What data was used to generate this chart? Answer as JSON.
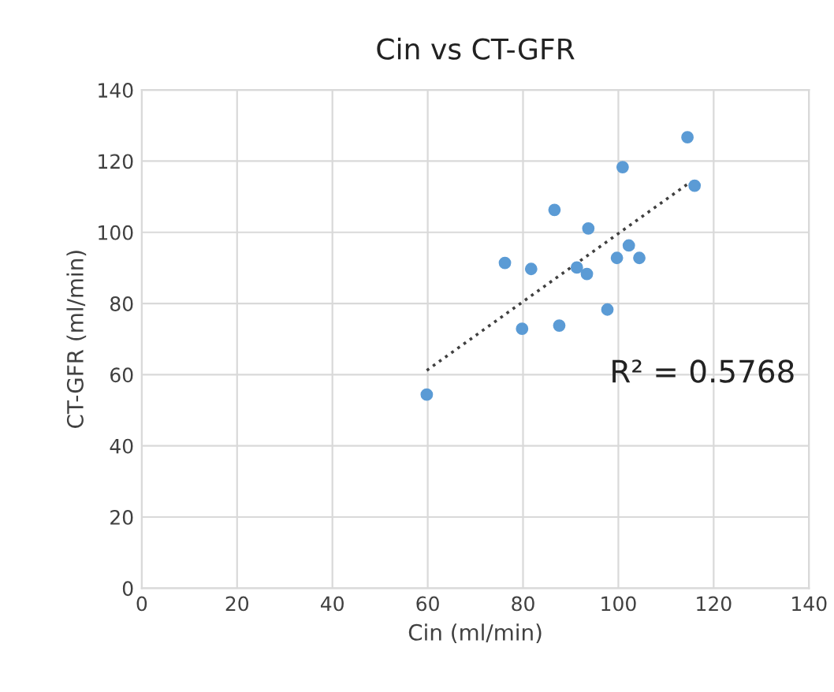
{
  "chart_data": {
    "type": "scatter",
    "title": "Cin vs CT-GFR",
    "xlabel": "Cin (ml/min)",
    "ylabel": "CT-GFR (ml/min)",
    "xlim": [
      0,
      140
    ],
    "xticks": [
      0,
      20,
      40,
      60,
      80,
      100,
      120,
      140
    ],
    "ylim": [
      0,
      140
    ],
    "yticks": [
      0,
      20,
      40,
      60,
      80,
      100,
      120,
      140
    ],
    "grid": true,
    "legend": false,
    "marker": "circle",
    "series": [
      {
        "color": "#5b9bd5",
        "x": [
          114.5,
          100.9,
          116.0,
          86.6,
          93.7,
          102.2,
          99.7,
          104.4,
          76.2,
          81.7,
          91.3,
          93.4,
          97.7,
          79.8,
          87.6,
          59.8
        ],
        "values": [
          126.7,
          118.3,
          113.1,
          106.3,
          101.1,
          96.3,
          92.8,
          92.8,
          91.4,
          89.7,
          90.1,
          88.3,
          78.3,
          72.9,
          73.8,
          54.4
        ]
      },
      {
        "type": "line",
        "color": "#404040",
        "line_style": "dotted",
        "marker": "none",
        "x": [
          59.8,
          115.2
        ],
        "values": [
          61.2,
          114.2
        ]
      }
    ],
    "annotations": [
      "R² = 0.5768"
    ]
  }
}
